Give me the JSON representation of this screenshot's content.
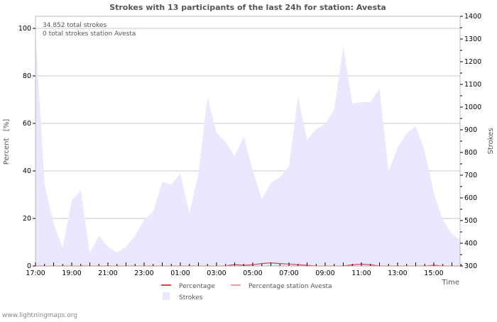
{
  "chart_data": {
    "type": "line",
    "title": "Strokes with 13 participants of the last 24h for station: Avesta",
    "info_lines": [
      "34.852 total strokes",
      "0 total strokes station Avesta"
    ],
    "xlabel": "Time",
    "ylabel_left": "Percent   [%]",
    "ylabel_right": "Strokes",
    "x_tick_labels": [
      "17:00",
      "19:00",
      "21:00",
      "23:00",
      "01:00",
      "03:00",
      "05:00",
      "07:00",
      "09:00",
      "11:00",
      "13:00",
      "15:00"
    ],
    "ylim_left": [
      0,
      105
    ],
    "yticks_left": [
      0,
      20,
      40,
      60,
      80,
      100
    ],
    "ylim_right": [
      300,
      1400
    ],
    "yticks_right": [
      300,
      400,
      500,
      600,
      700,
      800,
      900,
      1000,
      1100,
      1200,
      1300,
      1400
    ],
    "grid": true,
    "interval_minutes": 30,
    "series": [
      {
        "name": "Percentage",
        "color": "#e0404a",
        "axis": "left",
        "values": [
          0,
          0,
          0,
          0,
          0,
          0,
          0,
          0,
          0,
          0,
          0,
          0,
          0,
          0,
          0,
          0,
          0,
          0,
          0,
          0,
          0,
          0,
          0.6,
          0.3,
          0.5,
          1.0,
          1.3,
          1.0,
          0.8,
          0.5,
          0.3,
          0,
          0,
          0,
          0,
          0.5,
          0.8,
          0.5,
          0,
          0,
          0,
          0,
          0,
          0,
          0.3,
          0,
          0,
          0,
          0
        ]
      },
      {
        "name": "Percentage station Avesta",
        "color": "#ff9a9a",
        "axis": "left",
        "values": [
          0,
          0,
          0,
          0,
          0,
          0,
          0,
          0,
          0,
          0,
          0,
          0,
          0,
          0,
          0,
          0,
          0,
          0,
          0,
          0,
          0,
          0,
          0,
          0,
          0,
          0,
          0,
          0,
          0,
          0,
          0,
          0,
          0,
          0,
          0,
          0,
          0,
          0,
          0,
          0,
          0,
          0,
          0,
          0,
          0,
          0,
          0,
          0,
          0
        ]
      },
      {
        "name": "Strokes",
        "color": "#eae8ff",
        "axis": "right",
        "type": "area",
        "values": [
          1330,
          660,
          487,
          378,
          588,
          634,
          356,
          434,
          384,
          359,
          384,
          434,
          503,
          540,
          669,
          659,
          706,
          534,
          706,
          1044,
          887,
          847,
          784,
          869,
          722,
          594,
          666,
          691,
          737,
          1047,
          856,
          903,
          925,
          988,
          1266,
          1016,
          1022,
          1022,
          1081,
          716,
          822,
          884,
          916,
          806,
          622,
          503,
          441,
          416,
          410
        ]
      }
    ],
    "legend": {
      "placement": "bottom-center",
      "entries": [
        "Percentage",
        "Percentage station Avesta",
        "Strokes"
      ]
    },
    "credit": "www.lightningmaps.org"
  }
}
